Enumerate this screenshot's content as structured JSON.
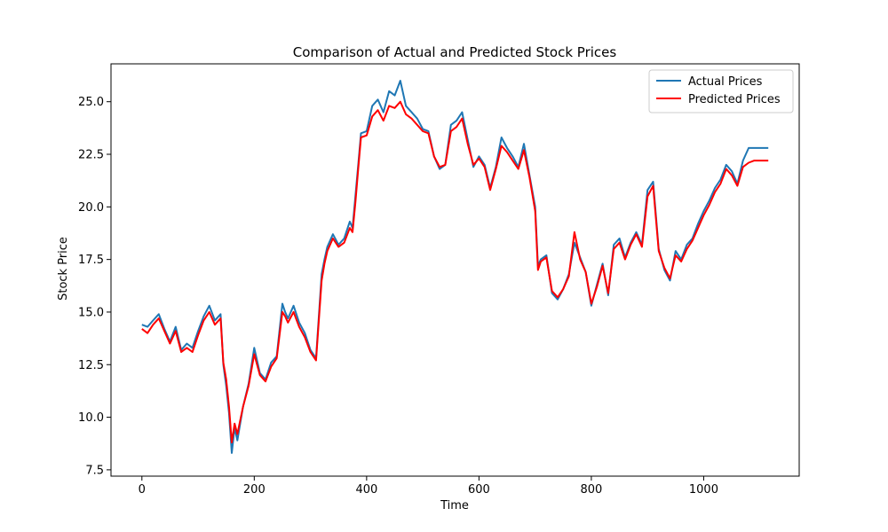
{
  "chart_data": {
    "type": "line",
    "title": "Comparison of Actual and Predicted Stock Prices",
    "xlabel": "Time",
    "ylabel": "Stock Price",
    "xlim": [
      -55,
      1170
    ],
    "ylim": [
      7.2,
      26.8
    ],
    "x_ticks": [
      0,
      200,
      400,
      600,
      800,
      1000
    ],
    "y_ticks": [
      7.5,
      10.0,
      12.5,
      15.0,
      17.5,
      20.0,
      22.5,
      25.0
    ],
    "x_tick_labels": [
      "0",
      "200",
      "400",
      "600",
      "800",
      "1000"
    ],
    "y_tick_labels": [
      "7.5",
      "10.0",
      "12.5",
      "15.0",
      "17.5",
      "20.0",
      "22.5",
      "25.0"
    ],
    "grid": false,
    "legend_position": "top-right",
    "colors": {
      "actual": "#1f77b4",
      "predicted": "#ff0000"
    },
    "series": [
      {
        "name": "Actual Prices",
        "x": [
          0,
          10,
          20,
          30,
          40,
          50,
          60,
          70,
          80,
          90,
          100,
          110,
          120,
          130,
          140,
          145,
          150,
          155,
          160,
          165,
          170,
          180,
          190,
          200,
          210,
          220,
          230,
          240,
          250,
          255,
          260,
          270,
          280,
          290,
          300,
          310,
          320,
          325,
          330,
          340,
          350,
          360,
          370,
          375,
          380,
          385,
          390,
          400,
          410,
          420,
          430,
          440,
          450,
          460,
          470,
          480,
          490,
          500,
          510,
          520,
          530,
          540,
          550,
          560,
          570,
          580,
          590,
          600,
          610,
          620,
          630,
          640,
          650,
          660,
          670,
          680,
          690,
          700,
          705,
          710,
          720,
          730,
          740,
          750,
          760,
          770,
          780,
          790,
          800,
          810,
          820,
          830,
          840,
          850,
          860,
          870,
          880,
          890,
          900,
          910,
          920,
          930,
          940,
          950,
          960,
          970,
          980,
          990,
          1000,
          1010,
          1020,
          1030,
          1040,
          1050,
          1060,
          1070,
          1080,
          1090,
          1100,
          1115
        ],
        "y": [
          14.4,
          14.3,
          14.6,
          14.9,
          14.2,
          13.6,
          14.3,
          13.2,
          13.5,
          13.3,
          14.1,
          14.8,
          15.3,
          14.6,
          14.9,
          12.5,
          11.5,
          10.2,
          8.3,
          9.5,
          8.9,
          10.5,
          11.6,
          13.3,
          12.1,
          11.8,
          12.6,
          12.9,
          15.4,
          15.0,
          14.7,
          15.3,
          14.5,
          14.0,
          13.2,
          12.8,
          16.8,
          17.5,
          18.1,
          18.7,
          18.2,
          18.5,
          19.3,
          19.0,
          20.5,
          22.0,
          23.5,
          23.6,
          24.8,
          25.1,
          24.5,
          25.5,
          25.3,
          26.0,
          24.8,
          24.5,
          24.2,
          23.7,
          23.6,
          22.4,
          21.8,
          22.0,
          23.9,
          24.1,
          24.5,
          23.2,
          21.9,
          22.4,
          22.0,
          20.9,
          21.9,
          23.3,
          22.8,
          22.4,
          21.9,
          23.0,
          21.5,
          20.0,
          17.2,
          17.5,
          17.7,
          15.9,
          15.6,
          16.1,
          16.8,
          18.3,
          17.6,
          16.9,
          15.3,
          16.3,
          17.3,
          15.8,
          18.2,
          18.5,
          17.6,
          18.3,
          18.8,
          18.2,
          20.8,
          21.2,
          18.0,
          17.0,
          16.5,
          17.9,
          17.5,
          18.2,
          18.5,
          19.2,
          19.8,
          20.3,
          20.9,
          21.3,
          22.0,
          21.7,
          21.1,
          22.2,
          22.8,
          22.8,
          22.8,
          22.8
        ]
      },
      {
        "name": "Predicted Prices",
        "x": [
          0,
          10,
          20,
          30,
          40,
          50,
          60,
          70,
          80,
          90,
          100,
          110,
          120,
          130,
          140,
          145,
          150,
          155,
          160,
          165,
          170,
          180,
          190,
          200,
          210,
          220,
          230,
          240,
          250,
          255,
          260,
          270,
          280,
          290,
          300,
          310,
          320,
          325,
          330,
          340,
          350,
          360,
          370,
          375,
          380,
          385,
          390,
          400,
          410,
          420,
          430,
          440,
          450,
          460,
          470,
          480,
          490,
          500,
          510,
          520,
          530,
          540,
          550,
          560,
          570,
          580,
          590,
          600,
          610,
          620,
          630,
          640,
          650,
          660,
          670,
          680,
          690,
          700,
          705,
          710,
          720,
          730,
          740,
          750,
          760,
          770,
          780,
          790,
          800,
          810,
          820,
          830,
          840,
          850,
          860,
          870,
          880,
          890,
          900,
          910,
          920,
          930,
          940,
          950,
          960,
          970,
          980,
          990,
          1000,
          1010,
          1020,
          1030,
          1040,
          1050,
          1060,
          1070,
          1080,
          1090,
          1100,
          1115
        ],
        "y": [
          14.2,
          14.0,
          14.4,
          14.7,
          14.1,
          13.5,
          14.1,
          13.1,
          13.3,
          13.1,
          13.9,
          14.6,
          15.0,
          14.4,
          14.7,
          12.6,
          11.8,
          10.5,
          8.8,
          9.7,
          9.2,
          10.5,
          11.5,
          13.0,
          12.0,
          11.7,
          12.4,
          12.8,
          15.0,
          14.8,
          14.5,
          15.0,
          14.3,
          13.8,
          13.1,
          12.7,
          16.5,
          17.3,
          17.9,
          18.5,
          18.1,
          18.3,
          19.0,
          18.8,
          20.2,
          21.8,
          23.3,
          23.4,
          24.3,
          24.6,
          24.1,
          24.8,
          24.7,
          25.0,
          24.4,
          24.2,
          23.9,
          23.6,
          23.5,
          22.4,
          21.9,
          22.0,
          23.6,
          23.8,
          24.2,
          23.0,
          22.0,
          22.3,
          21.9,
          20.8,
          21.8,
          22.9,
          22.6,
          22.2,
          21.8,
          22.7,
          21.4,
          19.8,
          17.0,
          17.4,
          17.6,
          16.0,
          15.7,
          16.1,
          16.7,
          18.8,
          17.5,
          16.9,
          15.4,
          16.2,
          17.2,
          15.9,
          18.0,
          18.3,
          17.5,
          18.2,
          18.7,
          18.1,
          20.5,
          21.0,
          17.9,
          17.1,
          16.6,
          17.7,
          17.4,
          18.0,
          18.4,
          19.0,
          19.6,
          20.1,
          20.7,
          21.1,
          21.8,
          21.5,
          21.0,
          21.9,
          22.1,
          22.2,
          22.2,
          22.2
        ]
      }
    ]
  }
}
